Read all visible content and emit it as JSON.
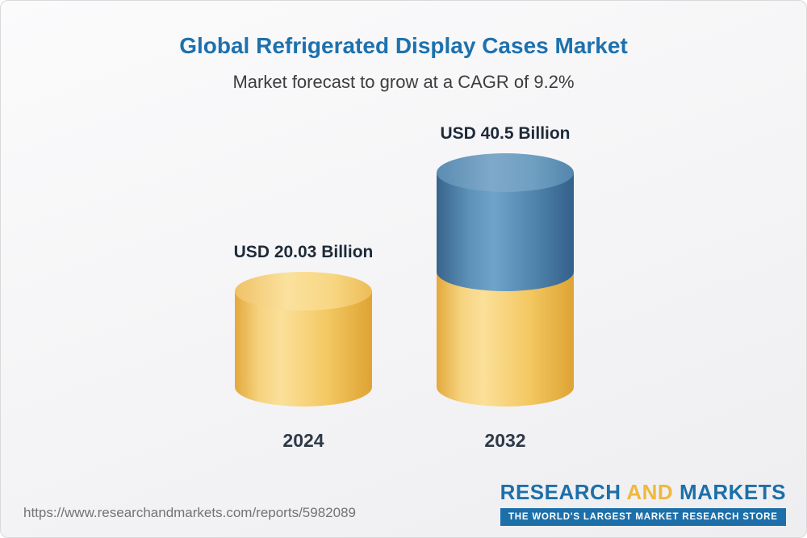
{
  "header": {
    "title": "Global Refrigerated Display Cases Market",
    "subtitle": "Market forecast to grow at a CAGR of 9.2%"
  },
  "chart_data": {
    "type": "bar",
    "title": "Global Refrigerated Display Cases Market",
    "subtitle": "Market forecast to grow at a CAGR of 9.2%",
    "unit": "USD Billion",
    "cagr_percent": 9.2,
    "categories": [
      "2024",
      "2032"
    ],
    "values": [
      20.03,
      40.5
    ],
    "ylim": [
      0,
      40.5
    ],
    "grid": false,
    "legend": false,
    "points": [
      {
        "category": "2024",
        "value": 20.03,
        "label": "USD 20.03 Billion",
        "segment_colors": [
          "#F2C55F"
        ]
      },
      {
        "category": "2032",
        "value": 40.5,
        "label": "USD 40.5 Billion",
        "base_segment_value": 20.03,
        "segment_colors": [
          "#4E82AC",
          "#F2C55F"
        ]
      }
    ]
  },
  "footer": {
    "url": "https://www.researchandmarkets.com/reports/5982089",
    "logo": {
      "word1": "RESEARCH",
      "word2": "AND",
      "word3": "MARKETS",
      "tagline": "THE WORLD'S LARGEST MARKET RESEARCH STORE"
    }
  },
  "colors": {
    "title_blue": "#1D71AE",
    "bar_yellow": "#F2C55F",
    "bar_blue": "#4E82AC",
    "logo_blue": "#1D6FA9",
    "logo_yellow": "#F0B83D",
    "label_dark": "#1E2A38"
  }
}
